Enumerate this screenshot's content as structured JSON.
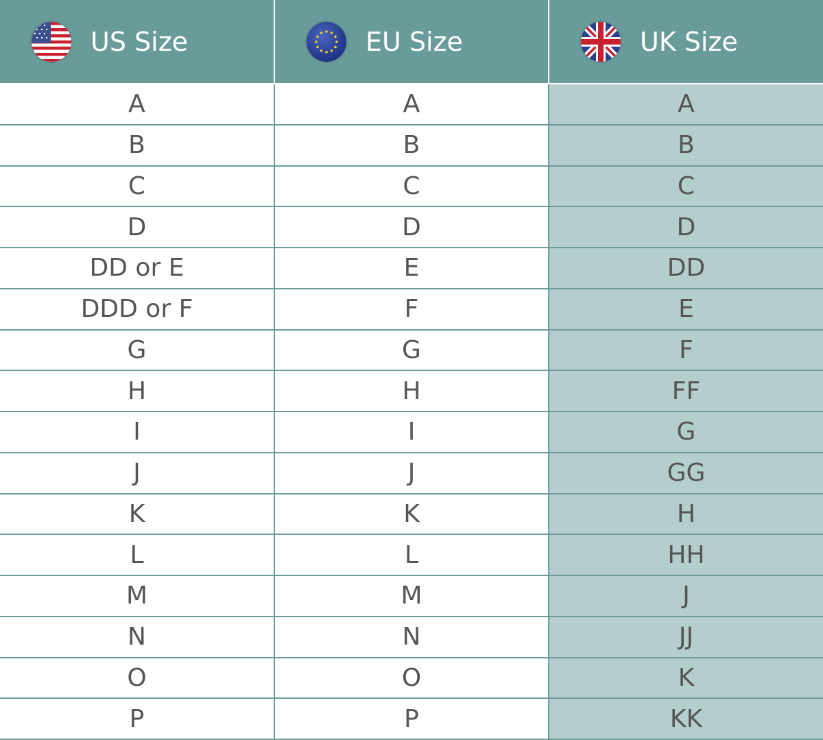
{
  "headers": [
    {
      "label": "US Size",
      "icon": "us-flag-icon"
    },
    {
      "label": "EU Size",
      "icon": "eu-flag-icon"
    },
    {
      "label": "UK Size",
      "icon": "uk-flag-icon"
    }
  ],
  "colors": {
    "header": "#699b9b",
    "uk_column": "#b4cece",
    "border": "#6a9c9c",
    "text": "#555555"
  },
  "rows": [
    [
      "A",
      "A",
      "A"
    ],
    [
      "B",
      "B",
      "B"
    ],
    [
      "C",
      "C",
      "C"
    ],
    [
      "D",
      "D",
      "D"
    ],
    [
      "DD or E",
      "E",
      "DD"
    ],
    [
      "DDD or F",
      "F",
      "E"
    ],
    [
      "G",
      "G",
      "F"
    ],
    [
      "H",
      "H",
      "FF"
    ],
    [
      "I",
      "I",
      "G"
    ],
    [
      "J",
      "J",
      "GG"
    ],
    [
      "K",
      "K",
      "H"
    ],
    [
      "L",
      "L",
      "HH"
    ],
    [
      "M",
      "M",
      "J"
    ],
    [
      "N",
      "N",
      "JJ"
    ],
    [
      "O",
      "O",
      "K"
    ],
    [
      "P",
      "P",
      "KK"
    ]
  ]
}
